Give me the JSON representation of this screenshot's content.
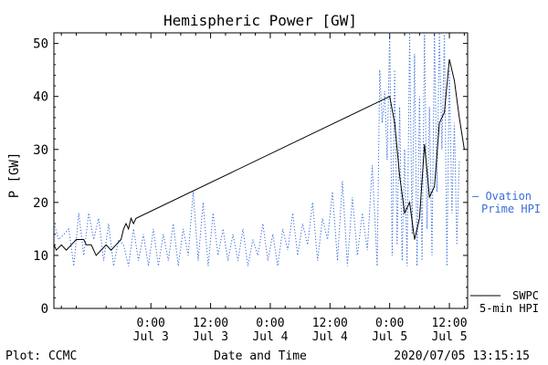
{
  "chart_data": {
    "type": "line",
    "title": "Hemispheric Power [GW]",
    "xlabel": "Date and Time",
    "ylabel": "P [GW]",
    "ylim": [
      0,
      52
    ],
    "y_ticks": [
      0,
      10,
      20,
      30,
      40,
      50
    ],
    "xlim": [
      "2020-07-02T04:30",
      "2020-07-05T15:40"
    ],
    "x_ticks": [
      {
        "x": "2020-07-03T00:00",
        "time": "0:00",
        "date": "Jul 3"
      },
      {
        "x": "2020-07-03T12:00",
        "time": "12:00",
        "date": "Jul 3"
      },
      {
        "x": "2020-07-04T00:00",
        "time": "0:00",
        "date": "Jul 4"
      },
      {
        "x": "2020-07-04T12:00",
        "time": "12:00",
        "date": "Jul 4"
      },
      {
        "x": "2020-07-05T00:00",
        "time": "0:00",
        "date": "Jul 5"
      },
      {
        "x": "2020-07-05T12:00",
        "time": "12:00",
        "date": "Jul 5"
      }
    ],
    "legend_position": "right",
    "series": [
      {
        "name": "SWPC 5-min HPI",
        "label_lines": [
          "SWPC",
          "5-min HPI"
        ],
        "color": "#000000",
        "style": "solid",
        "points": [
          [
            "2020-07-02T04:30",
            12
          ],
          [
            "2020-07-02T05:00",
            11
          ],
          [
            "2020-07-02T06:00",
            12
          ],
          [
            "2020-07-02T07:00",
            11
          ],
          [
            "2020-07-02T08:00",
            12
          ],
          [
            "2020-07-02T09:00",
            13
          ],
          [
            "2020-07-02T10:30",
            13
          ],
          [
            "2020-07-02T11:00",
            12
          ],
          [
            "2020-07-02T12:00",
            12
          ],
          [
            "2020-07-02T13:00",
            10
          ],
          [
            "2020-07-02T14:00",
            11
          ],
          [
            "2020-07-02T15:00",
            12
          ],
          [
            "2020-07-02T16:00",
            11
          ],
          [
            "2020-07-02T17:00",
            12
          ],
          [
            "2020-07-02T18:00",
            13
          ],
          [
            "2020-07-02T18:30",
            15
          ],
          [
            "2020-07-02T19:00",
            16
          ],
          [
            "2020-07-02T19:30",
            15
          ],
          [
            "2020-07-02T20:00",
            17
          ],
          [
            "2020-07-02T20:30",
            16
          ],
          [
            "2020-07-02T21:00",
            17
          ],
          [
            "2020-07-05T00:00",
            40
          ],
          [
            "2020-07-05T01:00",
            35
          ],
          [
            "2020-07-05T02:00",
            25
          ],
          [
            "2020-07-05T03:00",
            18
          ],
          [
            "2020-07-05T04:00",
            20
          ],
          [
            "2020-07-05T05:00",
            13
          ],
          [
            "2020-07-05T06:00",
            17
          ],
          [
            "2020-07-05T07:00",
            31
          ],
          [
            "2020-07-05T08:00",
            21
          ],
          [
            "2020-07-05T09:00",
            23
          ],
          [
            "2020-07-05T10:00",
            35
          ],
          [
            "2020-07-05T11:00",
            37
          ],
          [
            "2020-07-05T12:00",
            47
          ],
          [
            "2020-07-05T13:00",
            43
          ],
          [
            "2020-07-05T14:00",
            36
          ],
          [
            "2020-07-05T15:00",
            30
          ]
        ]
      },
      {
        "name": "Ovation Prime HPI",
        "label_lines": [
          "— Ovation",
          "Prime HPI"
        ],
        "color": "#3a6ed8",
        "style": "dotted",
        "points": [
          [
            "2020-07-02T04:30",
            16
          ],
          [
            "2020-07-02T05:30",
            13
          ],
          [
            "2020-07-02T06:30",
            14
          ],
          [
            "2020-07-02T07:30",
            15
          ],
          [
            "2020-07-02T08:30",
            8
          ],
          [
            "2020-07-02T09:30",
            18
          ],
          [
            "2020-07-02T10:30",
            10
          ],
          [
            "2020-07-02T11:30",
            18
          ],
          [
            "2020-07-02T12:30",
            13
          ],
          [
            "2020-07-02T13:30",
            17
          ],
          [
            "2020-07-02T14:30",
            9
          ],
          [
            "2020-07-02T15:30",
            16
          ],
          [
            "2020-07-02T16:30",
            8
          ],
          [
            "2020-07-02T17:30",
            13
          ],
          [
            "2020-07-02T18:30",
            12
          ],
          [
            "2020-07-02T19:30",
            8
          ],
          [
            "2020-07-02T20:30",
            15
          ],
          [
            "2020-07-02T21:30",
            9
          ],
          [
            "2020-07-02T22:30",
            14
          ],
          [
            "2020-07-02T23:30",
            8
          ],
          [
            "2020-07-03T00:30",
            15
          ],
          [
            "2020-07-03T01:30",
            8
          ],
          [
            "2020-07-03T02:30",
            14
          ],
          [
            "2020-07-03T03:30",
            9
          ],
          [
            "2020-07-03T04:30",
            16
          ],
          [
            "2020-07-03T05:30",
            8
          ],
          [
            "2020-07-03T06:30",
            15
          ],
          [
            "2020-07-03T07:30",
            10
          ],
          [
            "2020-07-03T08:30",
            22
          ],
          [
            "2020-07-03T09:30",
            9
          ],
          [
            "2020-07-03T10:30",
            20
          ],
          [
            "2020-07-03T11:30",
            8
          ],
          [
            "2020-07-03T12:30",
            18
          ],
          [
            "2020-07-03T13:30",
            10
          ],
          [
            "2020-07-03T14:30",
            15
          ],
          [
            "2020-07-03T15:30",
            9
          ],
          [
            "2020-07-03T16:30",
            14
          ],
          [
            "2020-07-03T17:30",
            9
          ],
          [
            "2020-07-03T18:30",
            15
          ],
          [
            "2020-07-03T19:30",
            8
          ],
          [
            "2020-07-03T20:30",
            13
          ],
          [
            "2020-07-03T21:30",
            10
          ],
          [
            "2020-07-03T22:30",
            16
          ],
          [
            "2020-07-03T23:30",
            9
          ],
          [
            "2020-07-04T00:30",
            14
          ],
          [
            "2020-07-04T01:30",
            8
          ],
          [
            "2020-07-04T02:30",
            15
          ],
          [
            "2020-07-04T03:30",
            11
          ],
          [
            "2020-07-04T04:30",
            18
          ],
          [
            "2020-07-04T05:30",
            10
          ],
          [
            "2020-07-04T06:30",
            16
          ],
          [
            "2020-07-04T07:30",
            12
          ],
          [
            "2020-07-04T08:30",
            20
          ],
          [
            "2020-07-04T09:30",
            9
          ],
          [
            "2020-07-04T10:30",
            17
          ],
          [
            "2020-07-04T11:30",
            13
          ],
          [
            "2020-07-04T12:30",
            22
          ],
          [
            "2020-07-04T13:30",
            9
          ],
          [
            "2020-07-04T14:30",
            24
          ],
          [
            "2020-07-04T15:30",
            8
          ],
          [
            "2020-07-04T16:30",
            21
          ],
          [
            "2020-07-04T17:30",
            10
          ],
          [
            "2020-07-04T18:30",
            18
          ],
          [
            "2020-07-04T19:30",
            11
          ],
          [
            "2020-07-04T20:30",
            27
          ],
          [
            "2020-07-04T21:30",
            8
          ],
          [
            "2020-07-04T22:00",
            45
          ],
          [
            "2020-07-04T22:30",
            35
          ],
          [
            "2020-07-04T23:00",
            41
          ],
          [
            "2020-07-04T23:30",
            28
          ],
          [
            "2020-07-05T00:00",
            52
          ],
          [
            "2020-07-05T00:30",
            10
          ],
          [
            "2020-07-05T01:00",
            45
          ],
          [
            "2020-07-05T01:30",
            12
          ],
          [
            "2020-07-05T02:00",
            38
          ],
          [
            "2020-07-05T02:30",
            9
          ],
          [
            "2020-07-05T03:00",
            30
          ],
          [
            "2020-07-05T03:30",
            8
          ],
          [
            "2020-07-05T04:00",
            52
          ],
          [
            "2020-07-05T04:30",
            14
          ],
          [
            "2020-07-05T05:00",
            48
          ],
          [
            "2020-07-05T05:30",
            8
          ],
          [
            "2020-07-05T06:00",
            40
          ],
          [
            "2020-07-05T06:30",
            9
          ],
          [
            "2020-07-05T07:00",
            52
          ],
          [
            "2020-07-05T07:30",
            15
          ],
          [
            "2020-07-05T08:00",
            38
          ],
          [
            "2020-07-05T08:30",
            10
          ],
          [
            "2020-07-05T09:00",
            52
          ],
          [
            "2020-07-05T09:30",
            22
          ],
          [
            "2020-07-05T10:00",
            52
          ],
          [
            "2020-07-05T10:30",
            30
          ],
          [
            "2020-07-05T11:00",
            52
          ],
          [
            "2020-07-05T11:30",
            8
          ],
          [
            "2020-07-05T12:00",
            45
          ],
          [
            "2020-07-05T12:30",
            18
          ],
          [
            "2020-07-05T13:00",
            35
          ],
          [
            "2020-07-05T13:30",
            12
          ],
          [
            "2020-07-05T14:00",
            28
          ]
        ]
      }
    ]
  },
  "footer": {
    "plot_credit": "Plot: CCMC",
    "timestamp": "2020/07/05 13:15:15"
  }
}
